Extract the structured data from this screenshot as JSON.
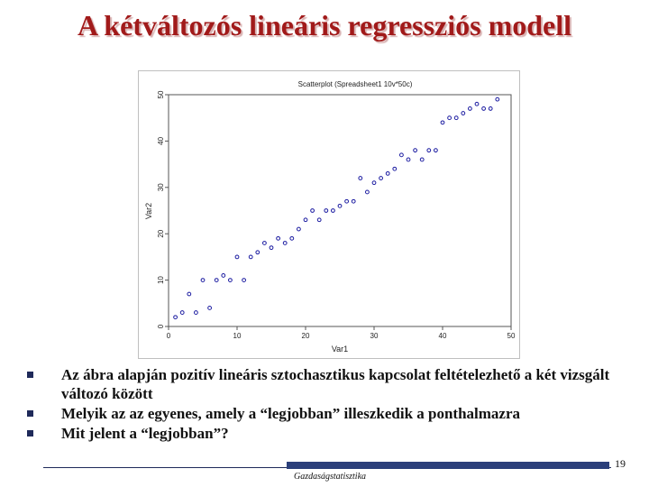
{
  "slide": {
    "title": "A kétváltozós lineáris regressziós modell",
    "page_number": "19",
    "footer": "Gazdaságstatisztika"
  },
  "bullets": [
    "Az ábra alapján pozitív lineáris sztochasztikus kapcsolat feltételezhető a két vizsgált változó között",
    "Melyik az az egyenes, amely a “legjobban” illeszkedik a ponthalmazra",
    "Mit jelent a “legjobban”?"
  ],
  "colors": {
    "title": "#a11a1a",
    "point": "#1a1aa0",
    "footer_block": "#2b3f7a"
  },
  "chart_data": {
    "type": "scatter",
    "title": "Scatterplot (Spreadsheet1 10v*50c)",
    "xlabel": "Var1",
    "ylabel": "Var2",
    "xlim": [
      0,
      50
    ],
    "ylim": [
      0,
      50
    ],
    "xticks": [
      "0",
      "10",
      "20",
      "30",
      "40",
      "50"
    ],
    "yticks": [
      "0",
      "10",
      "20",
      "30",
      "40",
      "50"
    ],
    "grid": false,
    "x": [
      1,
      2,
      3,
      4,
      5,
      6,
      7,
      8,
      9,
      10,
      11,
      12,
      13,
      14,
      15,
      16,
      17,
      18,
      19,
      20,
      21,
      22,
      23,
      24,
      25,
      26,
      27,
      28,
      29,
      30,
      31,
      32,
      33,
      34,
      35,
      36,
      37,
      38,
      39,
      40,
      41,
      42,
      43,
      44,
      45,
      46,
      47,
      48
    ],
    "y": [
      2,
      3,
      7,
      3,
      10,
      4,
      10,
      11,
      10,
      15,
      10,
      15,
      16,
      18,
      17,
      19,
      18,
      19,
      21,
      23,
      25,
      23,
      25,
      25,
      26,
      27,
      27,
      32,
      29,
      31,
      32,
      33,
      34,
      37,
      36,
      38,
      36,
      38,
      38,
      44,
      45,
      45,
      46,
      47,
      48,
      47,
      47,
      49
    ]
  }
}
